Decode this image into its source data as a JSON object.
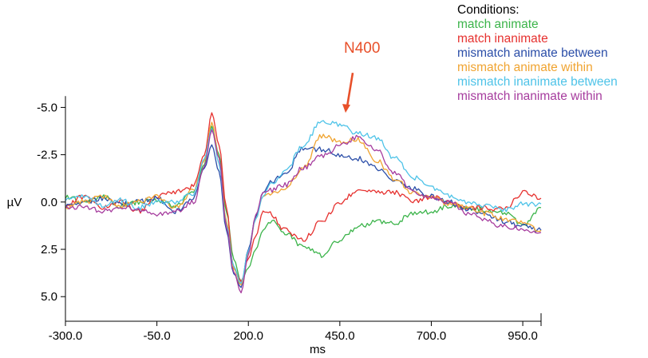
{
  "chart_data": {
    "type": "line",
    "xlabel": "ms",
    "ylabel": "µV",
    "xlim": [
      -300,
      1000
    ],
    "ylim": [
      -6.2,
      6.3
    ],
    "y_inverted": true,
    "x_ticks": [
      -300,
      -50,
      200,
      450,
      700,
      950
    ],
    "x_tick_labels": [
      "-300.0",
      "-50.0",
      "200.0",
      "450.0",
      "700.0",
      "950.0"
    ],
    "y_ticks": [
      -5,
      -2.5,
      0,
      2.5,
      5
    ],
    "y_tick_labels": [
      "-5.0",
      "-2.5",
      "0.0",
      "2.5",
      "5.0"
    ],
    "legend_title": "Conditions:",
    "legend_position": "top-right",
    "annotation": {
      "text": "N400",
      "color": "#e8502a",
      "x": 470,
      "y": -4.8
    },
    "x": [
      -300,
      -250,
      -200,
      -150,
      -100,
      -50,
      0,
      50,
      80,
      100,
      120,
      140,
      160,
      180,
      200,
      220,
      240,
      260,
      300,
      350,
      400,
      450,
      500,
      550,
      600,
      650,
      700,
      750,
      800,
      850,
      900,
      950,
      1000
    ],
    "series": [
      {
        "name": "match animate",
        "color": "#3cb44b",
        "values": [
          -0.3,
          0.0,
          -0.3,
          0.2,
          0.0,
          -0.1,
          0.2,
          -0.5,
          -2.0,
          -4.0,
          -2.5,
          0.5,
          3.0,
          4.2,
          3.5,
          2.5,
          1.5,
          1.0,
          1.6,
          2.4,
          2.8,
          2.0,
          1.3,
          1.0,
          1.1,
          0.6,
          0.5,
          0.2,
          0.3,
          0.4,
          0.6,
          1.2,
          0.3
        ]
      },
      {
        "name": "match inanimate",
        "color": "#e6312f",
        "values": [
          0.2,
          -0.3,
          0.3,
          0.0,
          0.5,
          -0.3,
          -0.5,
          -0.8,
          -2.5,
          -4.7,
          -3.0,
          0.3,
          3.5,
          4.2,
          3.0,
          1.8,
          0.5,
          0.6,
          1.5,
          2.0,
          1.0,
          0.0,
          -0.6,
          -0.5,
          -0.5,
          0.0,
          -0.3,
          0.0,
          0.3,
          0.3,
          0.4,
          -0.5,
          -0.2
        ]
      },
      {
        "name": "mismatch animate between",
        "color": "#2b4ea8",
        "values": [
          0.2,
          0.0,
          -0.2,
          0.1,
          0.0,
          -0.2,
          0.5,
          -0.2,
          -1.8,
          -3.0,
          -1.6,
          1.5,
          3.8,
          4.5,
          2.5,
          0.8,
          -0.5,
          -1.0,
          -1.5,
          -2.8,
          -2.8,
          -2.5,
          -2.3,
          -1.8,
          -1.2,
          -0.7,
          -0.3,
          0.0,
          0.4,
          0.7,
          1.0,
          1.3,
          1.5
        ]
      },
      {
        "name": "mismatch animate within",
        "color": "#f0a431",
        "values": [
          0.3,
          0.0,
          -0.3,
          0.2,
          0.0,
          -0.3,
          0.3,
          -0.6,
          -2.2,
          -4.2,
          -2.3,
          1.0,
          3.5,
          4.4,
          2.7,
          0.9,
          -0.3,
          -0.5,
          -0.7,
          -1.8,
          -3.5,
          -3.2,
          -3.3,
          -2.2,
          -1.2,
          -0.5,
          -0.2,
          0.1,
          0.3,
          0.6,
          0.9,
          1.1,
          1.5
        ]
      },
      {
        "name": "mismatch inanimate between",
        "color": "#4ec3e8",
        "values": [
          -0.2,
          -0.3,
          0.2,
          -0.1,
          0.3,
          0.0,
          0.0,
          -0.4,
          -2.3,
          -3.9,
          -2.0,
          1.2,
          3.4,
          4.3,
          2.6,
          0.9,
          -0.3,
          -0.9,
          -1.6,
          -3.0,
          -4.3,
          -4.1,
          -3.6,
          -3.4,
          -2.3,
          -1.3,
          -0.8,
          -0.3,
          0.0,
          0.2,
          0.4,
          0.1,
          0.1
        ]
      },
      {
        "name": "mismatch inanimate within",
        "color": "#a63c9e",
        "values": [
          0.4,
          0.2,
          0.5,
          0.3,
          0.4,
          0.6,
          0.5,
          0.0,
          -1.9,
          -3.8,
          -2.3,
          1.3,
          3.7,
          4.8,
          2.8,
          0.7,
          -0.5,
          -0.6,
          -0.9,
          -1.8,
          -2.4,
          -3.0,
          -3.4,
          -2.8,
          -1.5,
          -0.5,
          -0.2,
          0.0,
          0.6,
          1.0,
          1.3,
          1.4,
          1.6
        ]
      }
    ]
  }
}
